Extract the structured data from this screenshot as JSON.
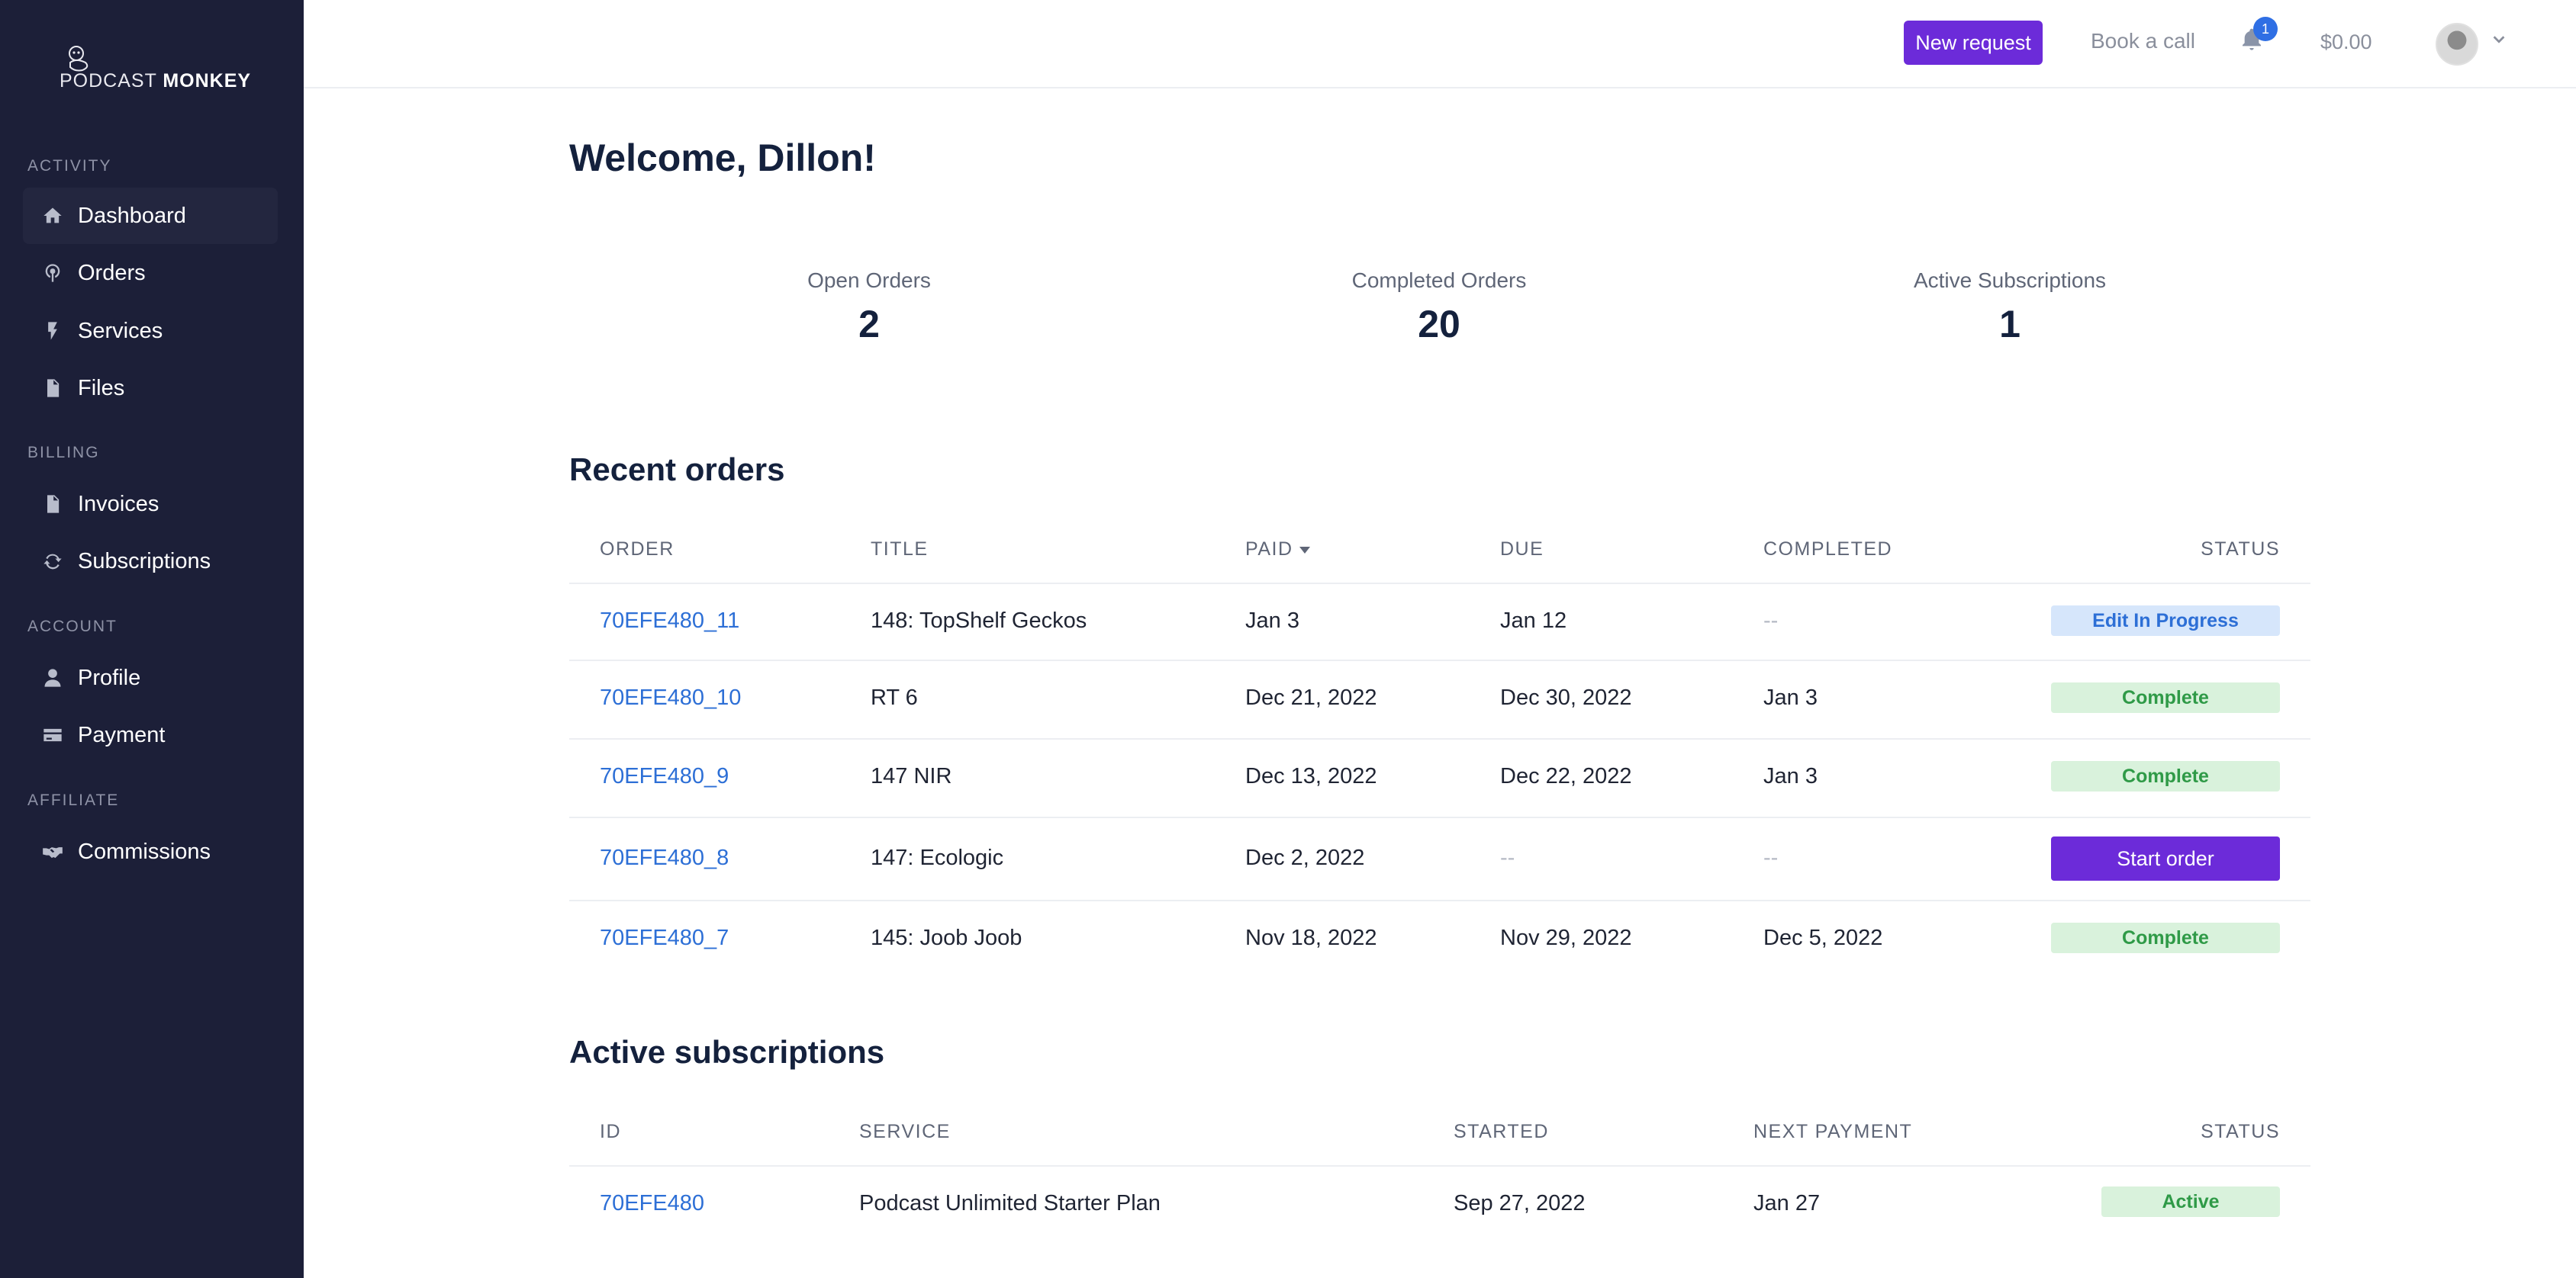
{
  "brand": {
    "name_light": "PODCAST",
    "name_bold": "MONKEY"
  },
  "sidebar": {
    "sections": [
      {
        "label": "ACTIVITY",
        "items": [
          {
            "label": "Dashboard",
            "icon": "home-icon",
            "active": true
          },
          {
            "label": "Orders",
            "icon": "podcast-icon"
          },
          {
            "label": "Services",
            "icon": "bolt-icon"
          },
          {
            "label": "Files",
            "icon": "file-icon"
          }
        ]
      },
      {
        "label": "BILLING",
        "items": [
          {
            "label": "Invoices",
            "icon": "invoice-icon"
          },
          {
            "label": "Subscriptions",
            "icon": "refresh-icon"
          }
        ]
      },
      {
        "label": "ACCOUNT",
        "items": [
          {
            "label": "Profile",
            "icon": "user-icon"
          },
          {
            "label": "Payment",
            "icon": "credit-card-icon"
          }
        ]
      },
      {
        "label": "AFFILIATE",
        "items": [
          {
            "label": "Commissions",
            "icon": "handshake-icon"
          }
        ]
      }
    ]
  },
  "topbar": {
    "new_request": "New request",
    "book_call": "Book a call",
    "notifications_count": "1",
    "balance": "$0.00"
  },
  "welcome": "Welcome, Dillon!",
  "stats": [
    {
      "label": "Open Orders",
      "value": "2"
    },
    {
      "label": "Completed Orders",
      "value": "20"
    },
    {
      "label": "Active Subscriptions",
      "value": "1"
    }
  ],
  "recent_orders": {
    "title": "Recent orders",
    "columns": {
      "order": "ORDER",
      "title": "TITLE",
      "paid": "PAID",
      "due": "DUE",
      "completed": "COMPLETED",
      "status": "STATUS"
    },
    "rows": [
      {
        "order": "70EFE480_11",
        "title": "148: TopShelf Geckos",
        "paid": "Jan 3",
        "due": "Jan 12",
        "completed": "--",
        "status": "Edit In Progress",
        "status_type": "progress"
      },
      {
        "order": "70EFE480_10",
        "title": "RT 6",
        "paid": "Dec 21, 2022",
        "due": "Dec 30, 2022",
        "completed": "Jan 3",
        "status": "Complete",
        "status_type": "complete"
      },
      {
        "order": "70EFE480_9",
        "title": "147 NIR",
        "paid": "Dec 13, 2022",
        "due": "Dec 22, 2022",
        "completed": "Jan 3",
        "status": "Complete",
        "status_type": "complete"
      },
      {
        "order": "70EFE480_8",
        "title": "147: Ecologic",
        "paid": "Dec 2, 2022",
        "due": "--",
        "completed": "--",
        "status": "Start order",
        "status_type": "button"
      },
      {
        "order": "70EFE480_7",
        "title": "145: Joob Joob",
        "paid": "Nov 18, 2022",
        "due": "Nov 29, 2022",
        "completed": "Dec 5, 2022",
        "status": "Complete",
        "status_type": "complete"
      }
    ]
  },
  "active_subscriptions": {
    "title": "Active subscriptions",
    "columns": {
      "id": "ID",
      "service": "SERVICE",
      "started": "STARTED",
      "next_payment": "NEXT PAYMENT",
      "status": "STATUS"
    },
    "rows": [
      {
        "id": "70EFE480",
        "service": "Podcast Unlimited Starter Plan",
        "started": "Sep 27, 2022",
        "next_payment": "Jan 27",
        "status": "Active"
      }
    ]
  },
  "colors": {
    "sidebar": "#1c1f38",
    "accent": "#6c2bd9",
    "link": "#2d6fd6",
    "success": "#2f9a47"
  }
}
